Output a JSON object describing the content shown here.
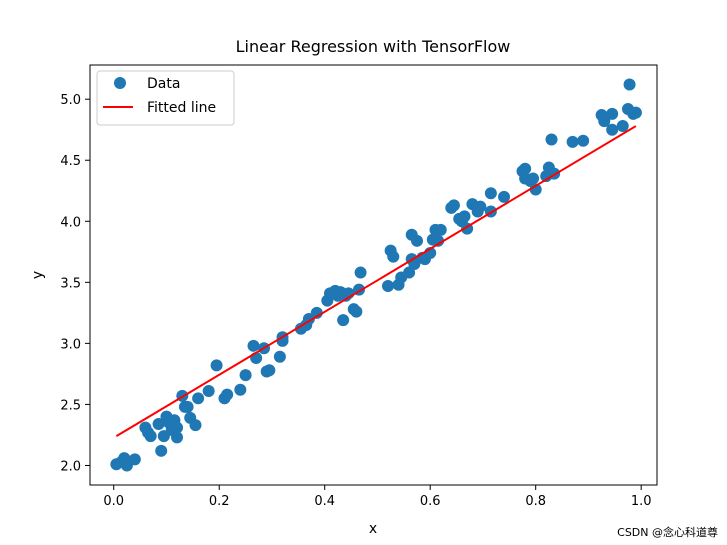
{
  "colors": {
    "scatter": "#1f77b4",
    "line": "#ff0000",
    "axes": "#000000",
    "watermark": "#b0b0b0"
  },
  "watermark": "CSDN @念心科道尊",
  "chart_data": {
    "type": "scatter",
    "title": "Linear Regression with TensorFlow",
    "xlabel": "x",
    "ylabel": "y",
    "xlim": [
      -0.045,
      1.03
    ],
    "ylim": [
      1.84,
      5.28
    ],
    "xticks": [
      "0.0",
      "0.2",
      "0.4",
      "0.6",
      "0.8",
      "1.0"
    ],
    "yticks": [
      "2.0",
      "2.5",
      "3.0",
      "3.5",
      "4.0",
      "4.5",
      "5.0"
    ],
    "grid": false,
    "legend_position": "top-left",
    "series": [
      {
        "name": "Data",
        "kind": "scatter",
        "points": [
          [
            0.005,
            2.01
          ],
          [
            0.015,
            2.03
          ],
          [
            0.02,
            2.06
          ],
          [
            0.025,
            2.0
          ],
          [
            0.04,
            2.05
          ],
          [
            0.06,
            2.31
          ],
          [
            0.065,
            2.27
          ],
          [
            0.07,
            2.24
          ],
          [
            0.085,
            2.34
          ],
          [
            0.09,
            2.12
          ],
          [
            0.095,
            2.24
          ],
          [
            0.1,
            2.4
          ],
          [
            0.105,
            2.35
          ],
          [
            0.11,
            2.29
          ],
          [
            0.115,
            2.37
          ],
          [
            0.12,
            2.23
          ],
          [
            0.12,
            2.31
          ],
          [
            0.13,
            2.57
          ],
          [
            0.135,
            2.48
          ],
          [
            0.14,
            2.48
          ],
          [
            0.145,
            2.39
          ],
          [
            0.155,
            2.33
          ],
          [
            0.16,
            2.55
          ],
          [
            0.18,
            2.61
          ],
          [
            0.195,
            2.82
          ],
          [
            0.21,
            2.55
          ],
          [
            0.215,
            2.58
          ],
          [
            0.24,
            2.62
          ],
          [
            0.25,
            2.74
          ],
          [
            0.265,
            2.98
          ],
          [
            0.27,
            2.88
          ],
          [
            0.285,
            2.96
          ],
          [
            0.29,
            2.77
          ],
          [
            0.295,
            2.78
          ],
          [
            0.315,
            2.89
          ],
          [
            0.32,
            3.02
          ],
          [
            0.32,
            3.05
          ],
          [
            0.355,
            3.12
          ],
          [
            0.365,
            3.15
          ],
          [
            0.37,
            3.2
          ],
          [
            0.385,
            3.25
          ],
          [
            0.405,
            3.35
          ],
          [
            0.41,
            3.41
          ],
          [
            0.42,
            3.43
          ],
          [
            0.425,
            3.39
          ],
          [
            0.43,
            3.42
          ],
          [
            0.435,
            3.19
          ],
          [
            0.44,
            3.39
          ],
          [
            0.445,
            3.41
          ],
          [
            0.455,
            3.28
          ],
          [
            0.46,
            3.26
          ],
          [
            0.465,
            3.44
          ],
          [
            0.468,
            3.58
          ],
          [
            0.52,
            3.47
          ],
          [
            0.525,
            3.76
          ],
          [
            0.53,
            3.71
          ],
          [
            0.54,
            3.48
          ],
          [
            0.545,
            3.54
          ],
          [
            0.56,
            3.58
          ],
          [
            0.565,
            3.69
          ],
          [
            0.565,
            3.89
          ],
          [
            0.57,
            3.65
          ],
          [
            0.575,
            3.84
          ],
          [
            0.585,
            3.7
          ],
          [
            0.59,
            3.69
          ],
          [
            0.6,
            3.74
          ],
          [
            0.605,
            3.85
          ],
          [
            0.61,
            3.93
          ],
          [
            0.615,
            3.84
          ],
          [
            0.62,
            3.93
          ],
          [
            0.64,
            4.11
          ],
          [
            0.645,
            4.13
          ],
          [
            0.655,
            4.02
          ],
          [
            0.66,
            4.0
          ],
          [
            0.665,
            4.04
          ],
          [
            0.67,
            3.94
          ],
          [
            0.68,
            4.14
          ],
          [
            0.69,
            4.08
          ],
          [
            0.695,
            4.12
          ],
          [
            0.715,
            4.08
          ],
          [
            0.715,
            4.23
          ],
          [
            0.74,
            4.2
          ],
          [
            0.775,
            4.41
          ],
          [
            0.78,
            4.43
          ],
          [
            0.78,
            4.35
          ],
          [
            0.79,
            4.33
          ],
          [
            0.795,
            4.35
          ],
          [
            0.8,
            4.26
          ],
          [
            0.82,
            4.37
          ],
          [
            0.825,
            4.44
          ],
          [
            0.83,
            4.67
          ],
          [
            0.835,
            4.39
          ],
          [
            0.87,
            4.65
          ],
          [
            0.89,
            4.66
          ],
          [
            0.925,
            4.87
          ],
          [
            0.93,
            4.82
          ],
          [
            0.945,
            4.75
          ],
          [
            0.945,
            4.88
          ],
          [
            0.965,
            4.78
          ],
          [
            0.975,
            4.92
          ],
          [
            0.978,
            5.12
          ],
          [
            0.985,
            4.88
          ],
          [
            0.99,
            4.89
          ]
        ]
      },
      {
        "name": "Fitted line",
        "kind": "line",
        "points": [
          [
            0.005,
            2.24
          ],
          [
            0.99,
            4.78
          ]
        ]
      }
    ]
  }
}
